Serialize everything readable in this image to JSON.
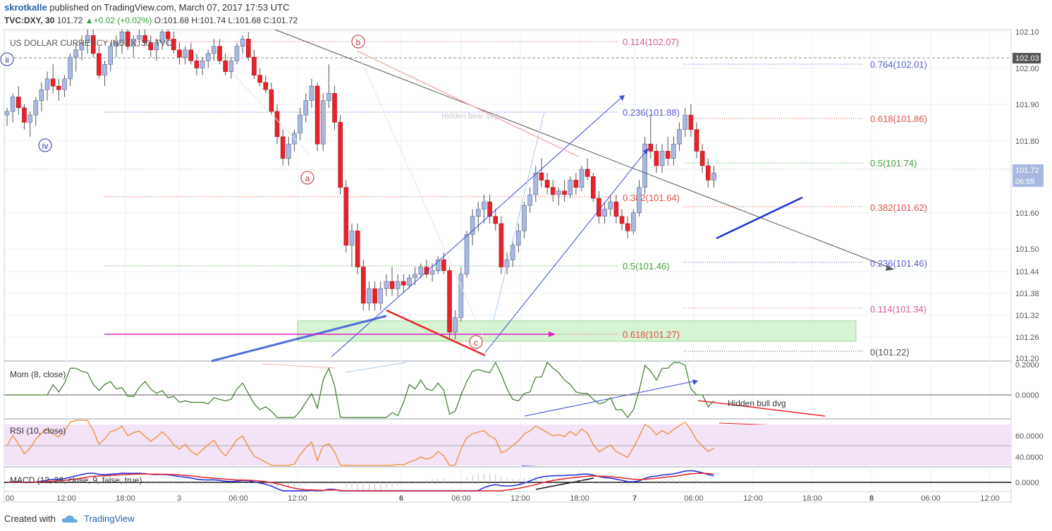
{
  "header": {
    "author": "skrotkalle",
    "published_text": "published on TradingView.com, March 07, 2017 17:53 UTC",
    "symbol": "TVC:DXY, 30",
    "last": "101.72",
    "change": "+0.02 (+0.02%)",
    "open": "O:101.68",
    "high": "H:101.74",
    "low": "L:101.68",
    "close": "C:101.72"
  },
  "chart_data": {
    "type": "candlestick",
    "title": "US DOLLAR CURRENCY INDEX, 30, TVC",
    "yticks": [
      "102.10",
      "102.00",
      "101.90",
      "101.80",
      "101.72",
      "101.60",
      "101.50",
      "101.44",
      "101.38",
      "101.32",
      "101.26",
      "101.20"
    ],
    "price_label": "101.72",
    "price_time": "06:55",
    "ref_price": "102.03",
    "xticks": [
      "00",
      "12:00",
      "18:00",
      "3",
      "06:00",
      "12:00",
      "6",
      "06:00",
      "12:00",
      "18:00",
      "7",
      "06:00",
      "12:00",
      "18:00",
      "8",
      "06:00",
      "12:00"
    ],
    "candles": [
      [
        101.88,
        101.9,
        101.85,
        101.89
      ],
      [
        101.89,
        101.94,
        101.86,
        101.93
      ],
      [
        101.93,
        101.96,
        101.88,
        101.9
      ],
      [
        101.9,
        101.91,
        101.84,
        101.86
      ],
      [
        101.86,
        101.89,
        101.82,
        101.88
      ],
      [
        101.88,
        101.93,
        101.85,
        101.92
      ],
      [
        101.92,
        101.97,
        101.89,
        101.95
      ],
      [
        101.95,
        102.0,
        101.92,
        101.98
      ],
      [
        101.98,
        102.02,
        101.94,
        101.96
      ],
      [
        101.96,
        101.98,
        101.92,
        101.95
      ],
      [
        101.95,
        101.99,
        101.93,
        101.98
      ],
      [
        101.98,
        102.05,
        101.96,
        102.04
      ],
      [
        102.04,
        102.08,
        102.0,
        102.06
      ],
      [
        102.06,
        102.1,
        102.03,
        102.08
      ],
      [
        102.08,
        102.12,
        102.05,
        102.1
      ],
      [
        102.1,
        102.12,
        102.04,
        102.05
      ],
      [
        102.05,
        102.07,
        101.98,
        101.99
      ],
      [
        101.99,
        102.03,
        101.96,
        102.02
      ],
      [
        102.02,
        102.08,
        102.0,
        102.07
      ],
      [
        102.07,
        102.1,
        102.04,
        102.08
      ],
      [
        102.08,
        102.12,
        102.05,
        102.11
      ],
      [
        102.11,
        102.12,
        102.06,
        102.07
      ],
      [
        102.07,
        102.1,
        102.04,
        102.09
      ],
      [
        102.09,
        102.12,
        102.07,
        102.1
      ],
      [
        102.1,
        102.13,
        102.07,
        102.08
      ],
      [
        102.08,
        102.1,
        102.04,
        102.06
      ],
      [
        102.06,
        102.09,
        102.03,
        102.08
      ],
      [
        102.08,
        102.12,
        102.06,
        102.11
      ],
      [
        102.11,
        102.13,
        102.07,
        102.09
      ],
      [
        102.09,
        102.11,
        102.05,
        102.06
      ],
      [
        102.06,
        102.08,
        102.02,
        102.04
      ],
      [
        102.04,
        102.07,
        102.02,
        102.06
      ],
      [
        102.06,
        102.08,
        102.02,
        102.03
      ],
      [
        102.03,
        102.05,
        101.99,
        102.01
      ],
      [
        102.01,
        102.04,
        101.99,
        102.03
      ],
      [
        102.03,
        102.06,
        102.01,
        102.05
      ],
      [
        102.05,
        102.09,
        102.03,
        102.07
      ],
      [
        102.07,
        102.09,
        102.02,
        102.03
      ],
      [
        102.03,
        102.05,
        101.99,
        102.0
      ],
      [
        102.0,
        102.04,
        101.98,
        102.03
      ],
      [
        102.03,
        102.08,
        102.02,
        102.07
      ],
      [
        102.07,
        102.1,
        102.05,
        102.09
      ],
      [
        102.09,
        102.11,
        102.03,
        102.04
      ],
      [
        102.04,
        102.06,
        101.98,
        101.99
      ],
      [
        101.99,
        102.01,
        101.96,
        101.97
      ],
      [
        101.97,
        101.99,
        101.94,
        101.95
      ],
      [
        101.95,
        101.97,
        101.88,
        101.89
      ],
      [
        101.89,
        101.91,
        101.8,
        101.82
      ],
      [
        101.82,
        101.84,
        101.74,
        101.76
      ],
      [
        101.76,
        101.82,
        101.74,
        101.8
      ],
      [
        101.8,
        101.84,
        101.78,
        101.83
      ],
      [
        101.83,
        101.9,
        101.81,
        101.88
      ],
      [
        101.88,
        101.94,
        101.86,
        101.92
      ],
      [
        101.92,
        101.98,
        101.9,
        101.96
      ],
      [
        101.96,
        101.97,
        101.78,
        101.8
      ],
      [
        101.8,
        101.94,
        101.78,
        101.92
      ],
      [
        101.92,
        102.02,
        101.9,
        101.94
      ],
      [
        101.94,
        101.96,
        101.84,
        101.86
      ],
      [
        101.86,
        101.88,
        101.66,
        101.68
      ],
      [
        101.68,
        101.7,
        101.5,
        101.52
      ],
      [
        101.52,
        101.58,
        101.46,
        101.56
      ],
      [
        101.56,
        101.58,
        101.44,
        101.46
      ],
      [
        101.46,
        101.48,
        101.34,
        101.36
      ],
      [
        101.36,
        101.42,
        101.34,
        101.4
      ],
      [
        101.4,
        101.42,
        101.34,
        101.36
      ],
      [
        101.36,
        101.42,
        101.34,
        101.4
      ],
      [
        101.4,
        101.44,
        101.38,
        101.42
      ],
      [
        101.42,
        101.46,
        101.38,
        101.4
      ],
      [
        101.4,
        101.44,
        101.38,
        101.42
      ],
      [
        101.42,
        101.44,
        101.39,
        101.41
      ],
      [
        101.41,
        101.44,
        101.4,
        101.43
      ],
      [
        101.43,
        101.46,
        101.41,
        101.44
      ],
      [
        101.44,
        101.47,
        101.43,
        101.46
      ],
      [
        101.46,
        101.48,
        101.43,
        101.44
      ],
      [
        101.44,
        101.47,
        101.42,
        101.45
      ],
      [
        101.45,
        101.49,
        101.44,
        101.48
      ],
      [
        101.48,
        101.5,
        101.44,
        101.45
      ],
      [
        101.45,
        101.46,
        101.26,
        101.28
      ],
      [
        101.28,
        101.34,
        101.26,
        101.32
      ],
      [
        101.32,
        101.46,
        101.31,
        101.44
      ],
      [
        101.44,
        101.56,
        101.43,
        101.55
      ],
      [
        101.55,
        101.62,
        101.52,
        101.6
      ],
      [
        101.6,
        101.64,
        101.56,
        101.62
      ],
      [
        101.62,
        101.66,
        101.58,
        101.64
      ],
      [
        101.64,
        101.66,
        101.58,
        101.6
      ],
      [
        101.6,
        101.62,
        101.56,
        101.58
      ],
      [
        101.58,
        101.6,
        101.44,
        101.46
      ],
      [
        101.46,
        101.5,
        101.44,
        101.48
      ],
      [
        101.48,
        101.53,
        101.46,
        101.52
      ],
      [
        101.52,
        101.58,
        101.5,
        101.56
      ],
      [
        101.56,
        101.64,
        101.54,
        101.63
      ],
      [
        101.63,
        101.68,
        101.61,
        101.66
      ],
      [
        101.66,
        101.74,
        101.64,
        101.72
      ],
      [
        101.72,
        101.76,
        101.68,
        101.7
      ],
      [
        101.7,
        101.72,
        101.66,
        101.68
      ],
      [
        101.68,
        101.7,
        101.64,
        101.66
      ],
      [
        101.66,
        101.68,
        101.63,
        101.67
      ],
      [
        101.67,
        101.7,
        101.64,
        101.66
      ],
      [
        101.66,
        101.71,
        101.65,
        101.7
      ],
      [
        101.7,
        101.72,
        101.66,
        101.68
      ],
      [
        101.68,
        101.74,
        101.67,
        101.73
      ],
      [
        101.73,
        101.76,
        101.7,
        101.71
      ],
      [
        101.71,
        101.72,
        101.64,
        101.65
      ],
      [
        101.65,
        101.67,
        101.58,
        101.6
      ],
      [
        101.6,
        101.64,
        101.58,
        101.62
      ],
      [
        101.62,
        101.66,
        101.6,
        101.64
      ],
      [
        101.64,
        101.66,
        101.58,
        101.6
      ],
      [
        101.6,
        101.62,
        101.56,
        101.58
      ],
      [
        101.58,
        101.6,
        101.54,
        101.56
      ],
      [
        101.56,
        101.62,
        101.55,
        101.61
      ],
      [
        101.61,
        101.7,
        101.6,
        101.68
      ],
      [
        101.68,
        101.82,
        101.66,
        101.8
      ],
      [
        101.8,
        101.88,
        101.76,
        101.78
      ],
      [
        101.78,
        101.8,
        101.72,
        101.74
      ],
      [
        101.74,
        101.8,
        101.72,
        101.78
      ],
      [
        101.78,
        101.82,
        101.74,
        101.76
      ],
      [
        101.76,
        101.82,
        101.74,
        101.8
      ],
      [
        101.8,
        101.86,
        101.78,
        101.84
      ],
      [
        101.84,
        101.9,
        101.82,
        101.88
      ],
      [
        101.88,
        101.91,
        101.82,
        101.84
      ],
      [
        101.84,
        101.86,
        101.76,
        101.78
      ],
      [
        101.78,
        101.8,
        101.72,
        101.74
      ],
      [
        101.74,
        101.76,
        101.68,
        101.7
      ],
      [
        101.7,
        101.74,
        101.68,
        101.72
      ]
    ],
    "fib_left": [
      {
        "label": "0.114(102.07)",
        "color": "#d35a9b"
      },
      {
        "label": "0.236(101.88)",
        "color": "#5a5ad8"
      },
      {
        "label": "0.382(101.64)",
        "color": "#e0504a"
      },
      {
        "label": "0.5(101.46)",
        "color": "#3ca03c"
      },
      {
        "label": "0.618(101.27)",
        "color": "#e0504a"
      }
    ],
    "fib_right": [
      {
        "label": "0.764(102.01)",
        "color": "#5a5ad8"
      },
      {
        "label": "0.618(101.86)",
        "color": "#e0504a"
      },
      {
        "label": "0.5(101.74)",
        "color": "#3ca03c"
      },
      {
        "label": "0.382(101.62)",
        "color": "#e0504a"
      },
      {
        "label": "0.236(101.46)",
        "color": "#5a5ad8"
      },
      {
        "label": "0.114(101.34)",
        "color": "#d35a9b"
      },
      {
        "label": "0(101.22)",
        "color": "#555555"
      }
    ],
    "wave_labels": {
      "ii": "ii",
      "iv": "iv",
      "a": "a",
      "b": "b",
      "c": "c"
    },
    "annotation_bear": "Hidden bear dvg",
    "mom": {
      "label": "Mom (8, close)",
      "ticks": [
        "0.2000",
        "0.0000"
      ]
    },
    "rsi": {
      "label": "RSI (10, close)",
      "ticks": [
        "60.0000",
        "40.0000"
      ]
    },
    "macd": {
      "label": "MACD (12, 26, close, 9, false, true)",
      "ticks": [
        "0.0000"
      ]
    },
    "annotation_bull": "Hidden bull dvg",
    "colors": {
      "up": "#a9b8e0",
      "down": "#e8222a",
      "mom": "#3a7a2a",
      "rsi": "#f08a24",
      "rsi_band": "#f3e3f7",
      "macd": "#1e2ad8",
      "signal": "#e8222a"
    }
  },
  "footer": {
    "created_with": "Created with",
    "brand": "TradingView"
  }
}
